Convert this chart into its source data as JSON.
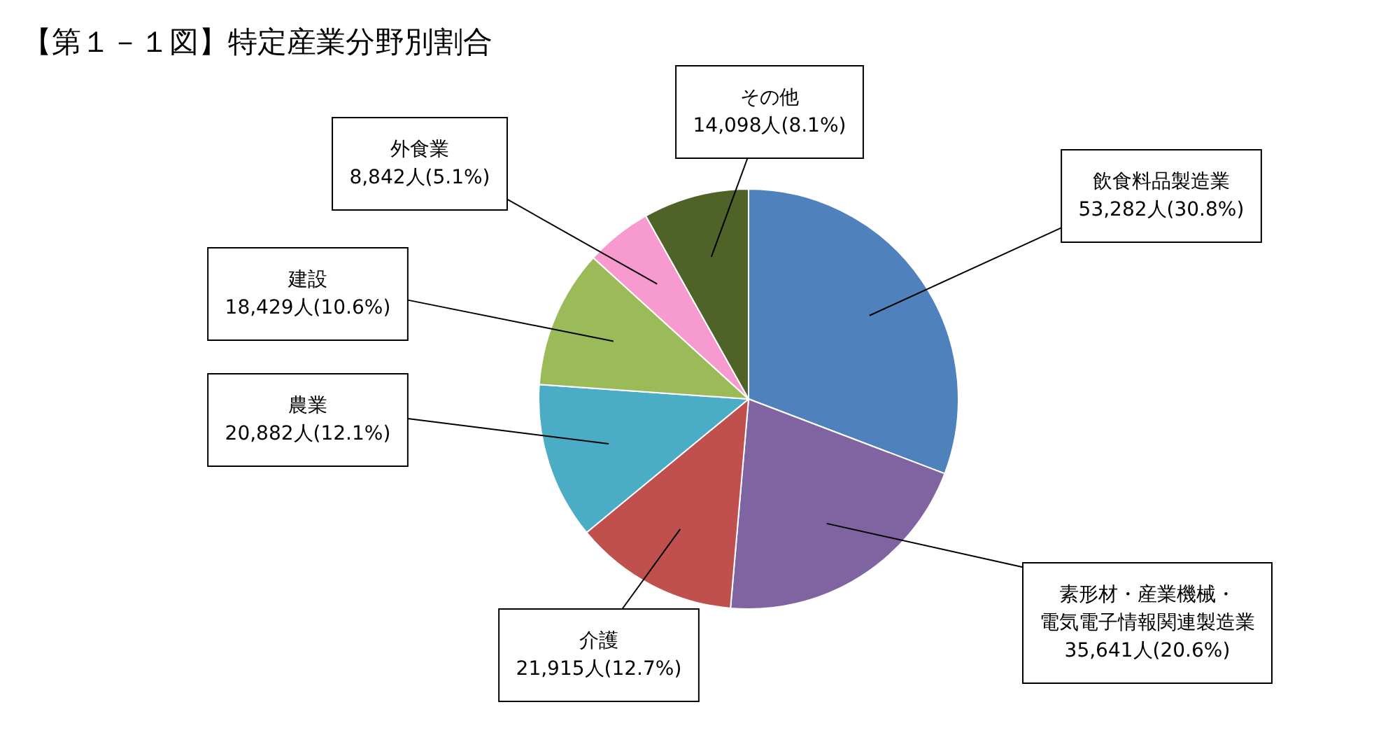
{
  "chart_data": {
    "type": "pie",
    "title": "【第１－１図】特定産業分野別割合",
    "categories": [
      "飲食料品製造業",
      "素形材・産業機械・電気電子情報関連製造業",
      "介護",
      "農業",
      "建設",
      "外食業",
      "その他"
    ],
    "values": [
      53282,
      35641,
      21915,
      20882,
      18429,
      8842,
      14098
    ],
    "value_labels": [
      "53,282人(30.8%)",
      "35,641人(20.6%)",
      "21,915人(12.7%)",
      "20,882人(12.1%)",
      "18,429人(10.6%)",
      "8,842人(5.1%)",
      "14,098人(8.1%)"
    ],
    "colors": [
      "#4f81bd",
      "#8064a2",
      "#c0504d",
      "#4bacc6",
      "#9bbb59",
      "#f79acf",
      "#4f6228"
    ]
  }
}
